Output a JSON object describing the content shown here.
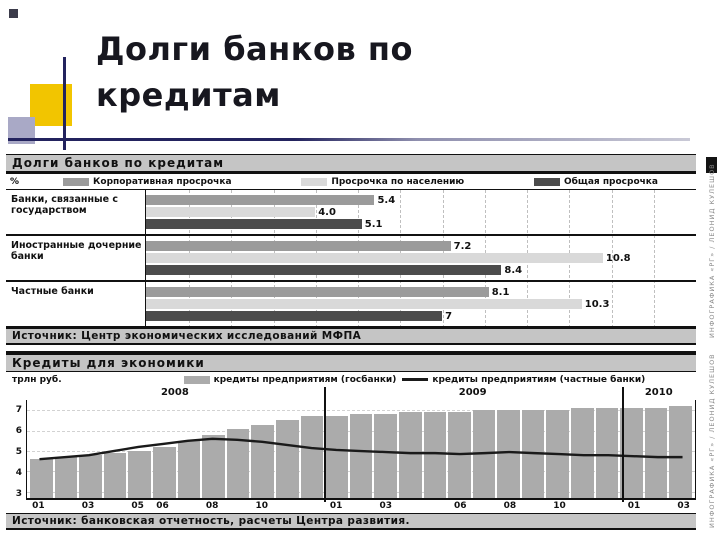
{
  "slide": {
    "title_line1": "Долги банков по",
    "title_line2": "кредитам"
  },
  "credits": {
    "top": "ИНФОГРАФИКА «РГ» / ЛЕОНИД КУЛЕШОВ",
    "bottom": "ИНФОГРАФИКА «РГ» / ЛЕОНИД КУЛЕШОВ"
  },
  "chart_data": [
    {
      "type": "bar",
      "orientation": "horizontal",
      "title": "Долги банков по кредитам",
      "unit": "%",
      "xlim": [
        0,
        13
      ],
      "grid": "dashed-vertical",
      "legend_position": "top",
      "categories": [
        "Банки, связанные с государством",
        "Иностранные дочерние банки",
        "Частные банки"
      ],
      "series": [
        {
          "name": "Корпоративная просрочка",
          "color": "#9b9b9b",
          "values": [
            5.4,
            7.2,
            8.1
          ]
        },
        {
          "name": "Просрочка по населению",
          "color": "#d9d9d9",
          "values": [
            4.0,
            10.8,
            10.3
          ]
        },
        {
          "name": "Общая просрочка",
          "color": "#4c4c4c",
          "values": [
            5.1,
            8.4,
            7
          ]
        }
      ],
      "value_labels": [
        [
          "5.4",
          "4.0",
          "5.1"
        ],
        [
          "7.2",
          "10.8",
          "8.4"
        ],
        [
          "8.1",
          "10.3",
          "7"
        ]
      ],
      "source": "Источник: Центр экономических исследований МФПА"
    },
    {
      "type": "bar+line",
      "title": "Кредиты для экономики",
      "unit": "трлн руб.",
      "ylim": [
        2.7,
        7.5
      ],
      "y_ticks": [
        7,
        6,
        5,
        4,
        3
      ],
      "years": [
        {
          "label": "2008",
          "span": 12
        },
        {
          "label": "2009",
          "span": 12
        },
        {
          "label": "2010",
          "span": 3
        }
      ],
      "x_labels": [
        "01",
        "03",
        "05",
        "06",
        "08",
        "10",
        "01",
        "03",
        "06",
        "08",
        "10",
        "01",
        "03"
      ],
      "x_label_idx": [
        0,
        2,
        4,
        5,
        7,
        9,
        12,
        14,
        17,
        19,
        21,
        24,
        26
      ],
      "bar_series": {
        "name": "кредиты предприятиям (госбанки)",
        "color": "#ababab",
        "values": [
          4.6,
          4.7,
          4.8,
          4.9,
          5.0,
          5.2,
          5.5,
          5.8,
          6.1,
          6.3,
          6.5,
          6.7,
          6.7,
          6.8,
          6.8,
          6.9,
          6.9,
          6.9,
          7.0,
          7.0,
          7.0,
          7.0,
          7.1,
          7.1,
          7.1,
          7.1,
          7.2
        ]
      },
      "line_series": {
        "name": "кредиты предприятиям (частные банки)",
        "color": "#1a1a1a",
        "values": [
          4.6,
          4.7,
          4.8,
          5.0,
          5.2,
          5.35,
          5.5,
          5.6,
          5.55,
          5.45,
          5.3,
          5.15,
          5.05,
          5.0,
          4.95,
          4.9,
          4.9,
          4.85,
          4.9,
          4.95,
          4.9,
          4.85,
          4.8,
          4.8,
          4.75,
          4.7,
          4.7
        ]
      },
      "source": "Источник: банковская отчетность, расчеты Центра развития."
    }
  ]
}
